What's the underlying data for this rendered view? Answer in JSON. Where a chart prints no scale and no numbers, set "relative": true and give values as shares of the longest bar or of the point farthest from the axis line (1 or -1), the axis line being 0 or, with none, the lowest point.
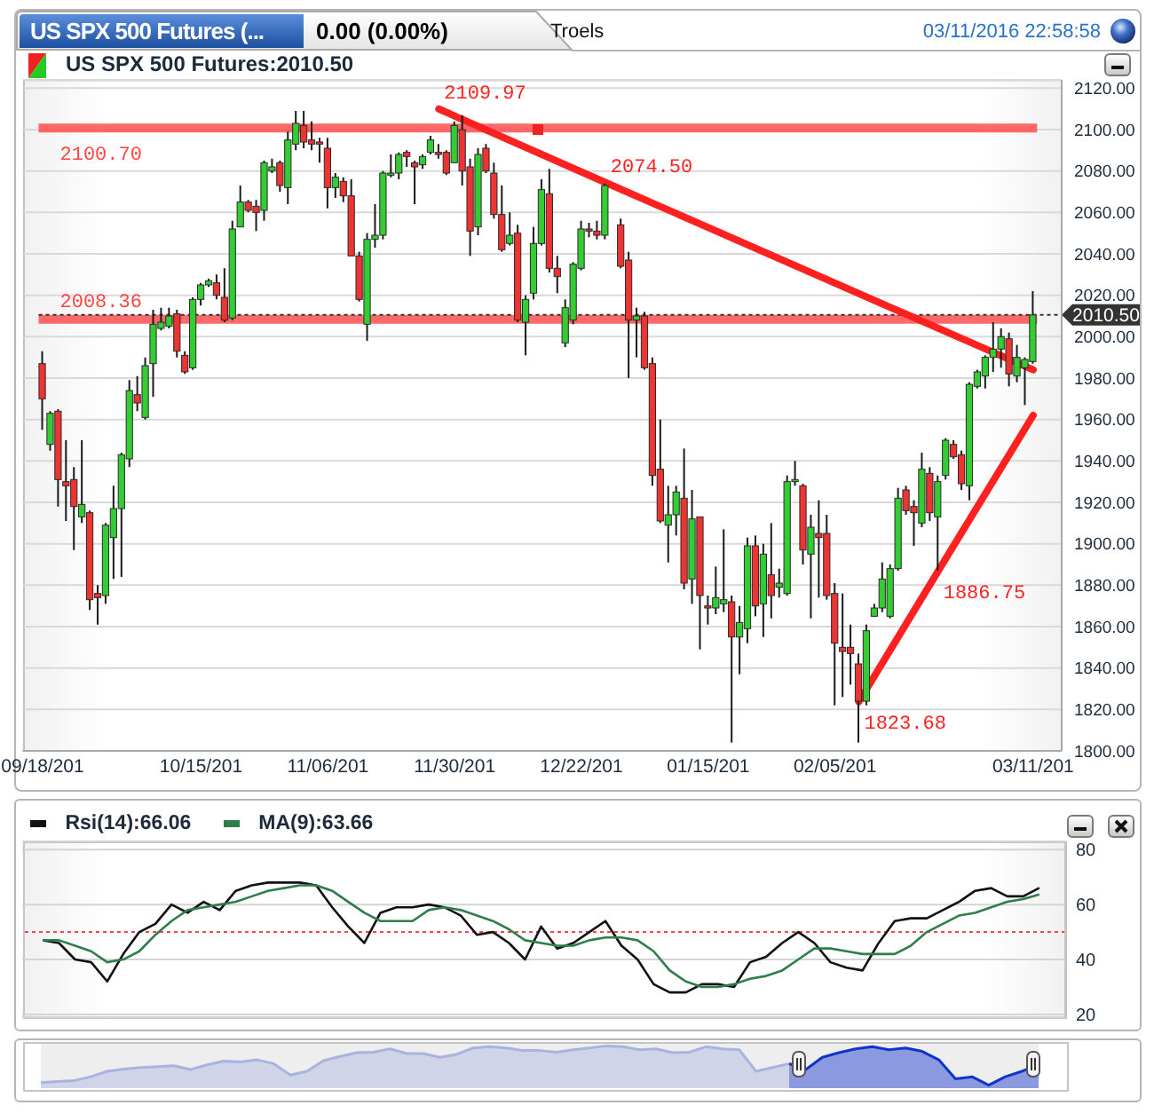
{
  "chart_data": [
    {
      "type": "candlestick",
      "title": "US SPX 500 Futures:2010.50",
      "annotations": [
        "US SPX 500 Futures (...",
        "0.00 (0.00%)",
        "Troels",
        "03/11/2016 22:58:58"
      ],
      "categories": [
        "09/18/201",
        null,
        null,
        null,
        null,
        null,
        null,
        null,
        null,
        null,
        null,
        null,
        null,
        null,
        null,
        null,
        null,
        null,
        null,
        null,
        "10/15/201",
        null,
        null,
        null,
        null,
        null,
        null,
        null,
        null,
        null,
        null,
        null,
        null,
        null,
        null,
        null,
        "11/06/201",
        null,
        null,
        null,
        null,
        null,
        null,
        null,
        null,
        null,
        null,
        null,
        null,
        null,
        null,
        null,
        "11/30/201",
        null,
        null,
        null,
        null,
        null,
        null,
        null,
        null,
        null,
        null,
        null,
        null,
        null,
        null,
        null,
        "12/22/201",
        null,
        null,
        null,
        null,
        null,
        null,
        null,
        null,
        null,
        null,
        null,
        null,
        null,
        null,
        null,
        "01/15/201",
        null,
        null,
        null,
        null,
        null,
        null,
        null,
        null,
        null,
        null,
        null,
        null,
        null,
        null,
        null,
        "02/05/201",
        null,
        null,
        null,
        null,
        null,
        null,
        null,
        null,
        null,
        null,
        null,
        null,
        null,
        null,
        null,
        null,
        null,
        null,
        null,
        null,
        null,
        null,
        null,
        null,
        "03/11/201"
      ],
      "ohlc": [
        [
          1987,
          1993,
          1955,
          1970
        ],
        [
          1948,
          1964,
          1945,
          1963
        ],
        [
          1964,
          1965,
          1918,
          1931
        ],
        [
          1930,
          1950,
          1911,
          1928
        ],
        [
          1931,
          1937,
          1897,
          1918
        ],
        [
          1913,
          1950,
          1910,
          1919
        ],
        [
          1915,
          1916,
          1868,
          1873
        ],
        [
          1876,
          1880,
          1861,
          1874
        ],
        [
          1875,
          1910,
          1871,
          1909
        ],
        [
          1903,
          1928,
          1883,
          1917
        ],
        [
          1917,
          1944,
          1884,
          1943
        ],
        [
          1941,
          1979,
          1937,
          1974
        ],
        [
          1972,
          1981,
          1964,
          1968
        ],
        [
          1961,
          1990,
          1960,
          1986
        ],
        [
          1987,
          2013,
          1971,
          2006
        ],
        [
          2004,
          2014,
          2003,
          2007
        ],
        [
          2005,
          2014,
          2004,
          2010
        ],
        [
          2011,
          2013,
          1990,
          1993
        ],
        [
          1991,
          1993,
          1982,
          1983
        ],
        [
          1985,
          2019,
          1984,
          2018
        ],
        [
          2018,
          2026,
          2015,
          2025
        ],
        [
          2025,
          2028,
          2024,
          2027
        ],
        [
          2026,
          2030,
          2018,
          2020
        ],
        [
          2019,
          2033,
          2007,
          2008
        ],
        [
          2009,
          2056,
          2008,
          2052
        ],
        [
          2053,
          2073,
          2053,
          2065
        ],
        [
          2065,
          2066,
          2060,
          2061
        ],
        [
          2063,
          2066,
          2051,
          2060
        ],
        [
          2061,
          2085,
          2056,
          2084
        ],
        [
          2080,
          2086,
          2079,
          2082
        ],
        [
          2084,
          2085,
          2070,
          2073
        ],
        [
          2072,
          2099,
          2064,
          2095
        ],
        [
          2093,
          2109,
          2090,
          2103
        ],
        [
          2102,
          2109,
          2091,
          2094
        ],
        [
          2095,
          2104,
          2090,
          2093
        ],
        [
          2094,
          2096,
          2084,
          2093
        ],
        [
          2091,
          2096,
          2062,
          2072
        ],
        [
          2072,
          2079,
          2067,
          2077
        ],
        [
          2075,
          2077,
          2065,
          2068
        ],
        [
          2068,
          2076,
          2039,
          2039
        ],
        [
          2039,
          2041,
          2017,
          2018
        ],
        [
          2006,
          2050,
          1998,
          2047
        ],
        [
          2047,
          2064,
          2043,
          2049
        ],
        [
          2049,
          2080,
          2047,
          2079
        ],
        [
          2078,
          2088,
          2077,
          2079
        ],
        [
          2079,
          2089,
          2076,
          2088
        ],
        [
          2089,
          2090,
          2082,
          2087
        ],
        [
          2084,
          2085,
          2064,
          2082
        ],
        [
          2083,
          2088,
          2081,
          2087
        ],
        [
          2089,
          2097,
          2088,
          2095
        ],
        [
          2089,
          2093,
          2086,
          2088
        ],
        [
          2089,
          2090,
          2078,
          2079
        ],
        [
          2084,
          2104,
          2084,
          2102
        ],
        [
          2100,
          2107,
          2073,
          2080
        ],
        [
          2082,
          2086,
          2039,
          2051
        ],
        [
          2053,
          2091,
          2049,
          2088
        ],
        [
          2091,
          2093,
          2079,
          2080
        ],
        [
          2079,
          2084,
          2057,
          2059
        ],
        [
          2059,
          2073,
          2041,
          2042
        ],
        [
          2045,
          2060,
          2044,
          2049
        ],
        [
          2050,
          2054,
          2007,
          2008
        ],
        [
          2007,
          2020,
          1991,
          2018
        ],
        [
          2021,
          2053,
          2018,
          2045
        ],
        [
          2045,
          2076,
          2044,
          2071
        ],
        [
          2069,
          2081,
          2031,
          2033
        ],
        [
          2033,
          2039,
          2021,
          2029
        ],
        [
          1997,
          2018,
          1995,
          2014
        ],
        [
          2008,
          2036,
          2006,
          2035
        ],
        [
          2033,
          2056,
          2032,
          2052
        ],
        [
          2052,
          2055,
          2048,
          2051
        ],
        [
          2051,
          2056,
          2047,
          2049
        ],
        [
          2049,
          2074,
          2047,
          2073
        ],
        null,
        [
          2054,
          2057,
          2033,
          2034
        ],
        [
          2037,
          2041,
          1980,
          2008
        ],
        [
          2008,
          2014,
          1990,
          2010
        ],
        [
          2010,
          2012,
          1984,
          1985
        ],
        [
          1987,
          1990,
          1928,
          1933
        ],
        [
          1936,
          1960,
          1910,
          1911
        ],
        [
          1909,
          1928,
          1891,
          1914
        ],
        [
          1914,
          1928,
          1904,
          1925
        ],
        [
          1922,
          1946,
          1878,
          1881
        ],
        [
          1883,
          1926,
          1871,
          1912
        ],
        [
          1913,
          1913,
          1849,
          1875
        ],
        [
          1870,
          1875,
          1861,
          1869
        ],
        [
          1869,
          1889,
          1866,
          1874
        ],
        [
          1871,
          1907,
          1867,
          1873
        ],
        [
          1872,
          1875,
          1804,
          1855
        ],
        [
          1855,
          1870,
          1837,
          1862
        ],
        [
          1859,
          1903,
          1852,
          1899
        ],
        [
          1899,
          1904,
          1865,
          1870
        ],
        [
          1871,
          1900,
          1855,
          1895
        ],
        [
          1885,
          1910,
          1864,
          1875
        ],
        [
          1879,
          1888,
          1874,
          1881
        ],
        [
          1876,
          1933,
          1875,
          1930
        ],
        [
          1930,
          1940,
          1928,
          1931
        ],
        [
          1928,
          1929,
          1890,
          1897
        ],
        [
          1895,
          1914,
          1864,
          1908
        ],
        [
          1905,
          1921,
          1874,
          1903
        ],
        [
          1905,
          1914,
          1873,
          1875
        ],
        [
          1876,
          1881,
          1822,
          1852
        ],
        [
          1850,
          1876,
          1826,
          1848
        ],
        [
          1850,
          1861,
          1832,
          1847
        ],
        [
          1842,
          1847,
          1804,
          1824
        ],
        [
          1824,
          1861,
          1822,
          1858
        ],
        [
          1865,
          1871,
          1865,
          1869
        ],
        [
          1869,
          1891,
          1867,
          1883
        ],
        [
          1865,
          1890,
          1864,
          1888
        ],
        [
          1888,
          1927,
          1887,
          1922
        ],
        [
          1926,
          1928,
          1914,
          1916
        ],
        [
          1918,
          1921,
          1899,
          1915
        ],
        [
          1910,
          1944,
          1908,
          1936
        ],
        [
          1934,
          1937,
          1911,
          1915
        ],
        [
          1913,
          1933,
          1887,
          1930
        ],
        [
          1933,
          1951,
          1931,
          1950
        ],
        [
          1948,
          1950,
          1941,
          1942
        ],
        [
          1943,
          1945,
          1926,
          1929
        ],
        [
          1928,
          1978,
          1921,
          1977
        ],
        [
          1976,
          1984,
          1975,
          1983
        ],
        [
          1981,
          1991,
          1975,
          1990
        ],
        [
          1990,
          2007,
          1983,
          1994
        ],
        [
          1994,
          2004,
          1985,
          2000
        ],
        [
          1999,
          2002,
          1976,
          1982
        ],
        [
          1981,
          1996,
          1978,
          1990
        ],
        [
          1985,
          1990,
          1967,
          1989
        ],
        [
          1988,
          2022,
          1987,
          2010.5
        ]
      ],
      "colors": [
        "#ee3333",
        "#33cc33",
        "#ee3333",
        "#ee3333",
        "#ee3333",
        "#33cc33",
        "#ee3333",
        "#ee3333",
        "#33cc33",
        "#33cc33",
        "#33cc33",
        "#33cc33",
        "#ee3333",
        "#33cc33",
        "#33cc33",
        "#33cc33",
        "#33cc33",
        "#ee3333",
        "#ee3333",
        "#33cc33",
        "#33cc33",
        "#33cc33",
        "#ee3333",
        "#ee3333",
        "#33cc33",
        "#33cc33",
        "#ee3333",
        "#ee3333",
        "#33cc33",
        "#33cc33",
        "#ee3333",
        "#33cc33",
        "#33cc33",
        "#ee3333",
        "#ee3333",
        "#ee3333",
        "#ee3333",
        "#33cc33",
        "#ee3333",
        "#ee3333",
        "#ee3333",
        "#33cc33",
        "#33cc33",
        "#33cc33",
        "#33cc33",
        "#33cc33",
        "#ee3333",
        "#ee3333",
        "#33cc33",
        "#33cc33",
        "#ee3333",
        "#ee3333",
        "#33cc33",
        "#ee3333",
        "#ee3333",
        "#33cc33",
        "#ee3333",
        "#ee3333",
        "#ee3333",
        "#33cc33",
        "#ee3333",
        "#33cc33",
        "#33cc33",
        "#33cc33",
        "#ee3333",
        "#ee3333",
        "#33cc33",
        "#33cc33",
        "#33cc33",
        "#ee3333",
        "#ee3333",
        "#33cc33",
        null,
        "#ee3333",
        "#ee3333",
        "#33cc33",
        "#ee3333",
        "#ee3333",
        "#ee3333",
        "#33cc33",
        "#33cc33",
        "#ee3333",
        "#33cc33",
        "#ee3333",
        "#ee3333",
        "#33cc33",
        "#33cc33",
        "#ee3333",
        "#33cc33",
        "#33cc33",
        "#ee3333",
        "#33cc33",
        "#ee3333",
        "#33cc33",
        "#33cc33",
        "#33cc33",
        "#ee3333",
        "#33cc33",
        "#ee3333",
        "#ee3333",
        "#ee3333",
        "#ee3333",
        "#ee3333",
        "#ee3333",
        "#33cc33",
        "#33cc33",
        "#33cc33",
        "#33cc33",
        "#33cc33",
        "#ee3333",
        "#ee3333",
        "#33cc33",
        "#ee3333",
        "#33cc33",
        "#33cc33",
        "#ee3333",
        "#ee3333",
        "#33cc33",
        "#33cc33",
        "#33cc33",
        "#33cc33",
        "#33cc33",
        "#ee3333",
        "#33cc33",
        "#33cc33",
        "#33cc33"
      ],
      "series": [
        {
          "type": "line",
          "color": "#ff2020",
          "values": [
            null,
            null,
            null,
            null,
            null,
            null,
            null,
            null,
            null,
            null,
            null,
            null,
            null,
            null,
            null,
            null,
            null,
            null,
            null,
            null,
            null,
            null,
            null,
            null,
            null,
            null,
            null,
            null,
            null,
            null,
            null,
            null,
            null,
            null,
            null,
            null,
            null,
            null,
            null,
            null,
            null,
            null,
            null,
            null,
            null,
            null,
            null,
            null,
            null,
            null,
            2109.97,
            null,
            null,
            null,
            null,
            null,
            null,
            null,
            null,
            null,
            null,
            null,
            null,
            null,
            null,
            null,
            null,
            null,
            null,
            null,
            null,
            2074.5,
            null,
            null,
            null,
            null,
            null,
            null,
            null,
            null,
            null,
            null,
            null,
            null,
            null,
            null,
            null,
            null,
            null,
            null,
            null,
            null,
            null,
            null,
            null,
            null,
            null,
            null,
            null,
            null,
            null,
            null,
            null,
            null,
            null,
            null,
            null,
            null,
            null,
            null,
            null,
            null,
            null,
            null,
            null,
            null,
            null,
            null,
            null,
            null,
            null,
            null,
            null,
            null,
            null,
            1984
          ],
          "value_labels": [
            null,
            null,
            null,
            null,
            null,
            null,
            null,
            null,
            null,
            null,
            null,
            null,
            null,
            null,
            null,
            null,
            null,
            null,
            null,
            null,
            null,
            null,
            null,
            null,
            null,
            null,
            null,
            null,
            null,
            null,
            null,
            null,
            null,
            null,
            null,
            null,
            null,
            null,
            null,
            null,
            null,
            null,
            null,
            null,
            null,
            null,
            null,
            null,
            null,
            null,
            "2109.97",
            null,
            null,
            null,
            null,
            null,
            null,
            null,
            null,
            null,
            null,
            null,
            null,
            null,
            null,
            null,
            null,
            null,
            null,
            null,
            null,
            "2074.50",
            null,
            null,
            null,
            null,
            null,
            null,
            null,
            null,
            null,
            null,
            null,
            null,
            null,
            null,
            null,
            null,
            null,
            null,
            null,
            null,
            null,
            null,
            null,
            null,
            null,
            null,
            null,
            null,
            null,
            null,
            null,
            null,
            null,
            null,
            null,
            null,
            null,
            null,
            null,
            null,
            null,
            null,
            null,
            null,
            null,
            null,
            null,
            null,
            null,
            null,
            null,
            null,
            null,
            null
          ]
        },
        {
          "type": "line",
          "color": "#ff2020",
          "values": [
            null,
            null,
            null,
            null,
            null,
            null,
            null,
            null,
            null,
            null,
            null,
            null,
            null,
            null,
            null,
            null,
            null,
            null,
            null,
            null,
            null,
            null,
            null,
            null,
            null,
            null,
            null,
            null,
            null,
            null,
            null,
            null,
            null,
            null,
            null,
            null,
            null,
            null,
            null,
            null,
            null,
            null,
            null,
            null,
            null,
            null,
            null,
            null,
            null,
            null,
            null,
            null,
            null,
            null,
            null,
            null,
            null,
            null,
            null,
            null,
            null,
            null,
            null,
            null,
            null,
            null,
            null,
            null,
            null,
            null,
            null,
            null,
            null,
            null,
            null,
            null,
            null,
            null,
            null,
            null,
            null,
            null,
            null,
            null,
            null,
            null,
            null,
            null,
            null,
            null,
            null,
            null,
            null,
            null,
            null,
            null,
            null,
            null,
            null,
            null,
            null,
            null,
            null,
            1823.68,
            null,
            null,
            null,
            null,
            null,
            null,
            null,
            null,
            null,
            1886.75,
            null,
            null,
            null,
            null,
            null,
            null,
            null,
            null,
            null,
            null,
            null,
            1962
          ],
          "value_labels": [
            null,
            null,
            null,
            null,
            null,
            null,
            null,
            null,
            null,
            null,
            null,
            null,
            null,
            null,
            null,
            null,
            null,
            null,
            null,
            null,
            null,
            null,
            null,
            null,
            null,
            null,
            null,
            null,
            null,
            null,
            null,
            null,
            null,
            null,
            null,
            null,
            null,
            null,
            null,
            null,
            null,
            null,
            null,
            null,
            null,
            null,
            null,
            null,
            null,
            null,
            null,
            null,
            null,
            null,
            null,
            null,
            null,
            null,
            null,
            null,
            null,
            null,
            null,
            null,
            null,
            null,
            null,
            null,
            null,
            null,
            null,
            null,
            null,
            null,
            null,
            null,
            null,
            null,
            null,
            null,
            null,
            null,
            null,
            null,
            null,
            null,
            null,
            null,
            null,
            null,
            null,
            null,
            null,
            null,
            null,
            null,
            null,
            null,
            null,
            null,
            null,
            null,
            null,
            "1823.68",
            null,
            null,
            null,
            null,
            null,
            null,
            null,
            null,
            null,
            "1886.75",
            null,
            null,
            null,
            null,
            null,
            null,
            null,
            null,
            null,
            null,
            null,
            null
          ]
        }
      ],
      "ylim": [
        1800,
        2124
      ],
      "yticks": [
        {
          "value": 1800,
          "label": "1800.00"
        },
        {
          "value": 1820,
          "label": "1820.00"
        },
        {
          "value": 1840,
          "label": "1840.00"
        },
        {
          "value": 1860,
          "label": "1860.00"
        },
        {
          "value": 1880,
          "label": "1880.00"
        },
        {
          "value": 1900,
          "label": "1900.00"
        },
        {
          "value": 1920,
          "label": "1920.00"
        },
        {
          "value": 1940,
          "label": "1940.00"
        },
        {
          "value": 1960,
          "label": "1960.00"
        },
        {
          "value": 1980,
          "label": "1980.00"
        },
        {
          "value": 2000,
          "label": "2000.00"
        },
        {
          "value": 2020,
          "label": "2020.00"
        },
        {
          "value": 2040,
          "label": "2040.00"
        },
        {
          "value": 2060,
          "label": "2060.00"
        },
        {
          "value": 2080,
          "label": "2080.00"
        },
        {
          "value": 2100,
          "label": "2100.00"
        },
        {
          "value": 2120,
          "label": "2120.00"
        }
      ],
      "grid": "y",
      "ref_lines": [
        {
          "axis": "y",
          "value": 2100.7,
          "label": "2100.70",
          "color": "#ff4444"
        },
        {
          "axis": "y",
          "value": 2008.36,
          "label": "2008.36",
          "color": "#ff4444"
        },
        {
          "axis": "y",
          "value": 2010.5,
          "label": "2010.50",
          "color": "#333333",
          "line_style": "dotted"
        }
      ]
    },
    {
      "type": "line",
      "categories": [
        null,
        null,
        null,
        null,
        null,
        null,
        null,
        null,
        null,
        null,
        null,
        null,
        null,
        null,
        null,
        null,
        null,
        null,
        null,
        null,
        null,
        null,
        null,
        null,
        null,
        null,
        null,
        null,
        null,
        null,
        null,
        null,
        null,
        null,
        null,
        null,
        null,
        null,
        null,
        null,
        null,
        null,
        null,
        null,
        null,
        null,
        null,
        null,
        null,
        null,
        null,
        null,
        null,
        null,
        null,
        null,
        null,
        null,
        null,
        null,
        null,
        null,
        null
      ],
      "series": [
        {
          "name": "Rsi(14):66.06",
          "color": "#111111",
          "values": [
            47,
            46,
            40,
            39,
            32,
            42,
            50,
            53,
            60,
            57,
            61,
            58,
            65,
            67,
            68,
            68,
            68,
            67,
            59,
            52,
            46,
            57,
            59,
            59,
            60,
            59,
            56,
            49,
            50,
            46,
            40,
            52,
            44,
            46,
            50,
            54,
            45,
            40,
            31,
            28,
            28,
            31,
            31,
            30,
            39,
            41,
            46,
            50,
            46,
            39,
            37,
            36,
            46,
            54,
            55,
            55,
            58,
            61,
            65,
            66,
            63,
            63,
            66.06
          ]
        },
        {
          "name": "MA(9):63.66",
          "color": "#2e7d4a",
          "values": [
            47,
            47,
            45,
            43,
            39,
            40,
            43,
            49,
            54,
            58,
            59,
            60,
            61,
            63,
            65,
            66,
            67,
            67,
            65,
            61,
            57,
            54,
            54,
            54,
            58,
            59,
            58,
            56,
            54,
            51,
            47,
            46,
            45,
            45,
            47,
            48,
            48,
            47,
            43,
            36,
            32,
            30,
            30,
            31,
            33,
            34,
            36,
            40,
            44,
            44,
            43,
            42,
            42,
            42,
            45,
            50,
            53,
            56,
            57,
            59,
            61,
            62,
            63.66
          ]
        }
      ],
      "ylim": [
        19,
        83
      ],
      "yticks": [
        20,
        40,
        60,
        80
      ],
      "grid": "y",
      "legend": "top left",
      "tick_labels": "y",
      "ref_lines": [
        {
          "axis": "y",
          "value": 50,
          "color": "#ff4444",
          "line_style": "dotted"
        }
      ]
    },
    {
      "type": "area",
      "relative": true,
      "tick_labels": false,
      "categories": [
        null,
        null,
        null,
        null,
        null,
        null,
        null,
        null,
        null,
        null,
        null,
        null,
        null,
        null,
        null,
        null,
        null,
        null,
        null,
        null,
        null,
        null,
        null,
        null,
        null,
        null,
        null,
        null,
        null,
        null,
        null,
        null,
        null,
        null,
        null,
        null,
        null,
        null,
        null,
        null,
        null,
        null,
        null,
        null,
        null,
        null,
        null,
        null,
        null,
        null,
        null,
        null,
        null,
        null,
        null,
        null,
        null,
        null,
        null,
        null,
        null
      ],
      "series": [
        {
          "color": "#a9b3df",
          "values": [
            0.13,
            0.16,
            0.18,
            0.27,
            0.4,
            0.45,
            0.49,
            0.51,
            0.53,
            0.44,
            0.55,
            0.64,
            0.62,
            0.67,
            0.58,
            0.31,
            0.4,
            0.65,
            0.75,
            0.84,
            0.85,
            0.93,
            0.82,
            0.82,
            0.73,
            0.8,
            0.95,
            0.98,
            0.95,
            0.89,
            0.89,
            0.85,
            0.91,
            0.95,
            1,
            0.98,
            0.91,
            0.93,
            0.84,
            0.85,
            0.98,
            0.93,
            0.91,
            0.4,
            0.49,
            0.58,
            null,
            null,
            null,
            null,
            null,
            null,
            null,
            null,
            null,
            null,
            null,
            null,
            null,
            null,
            null
          ]
        },
        {
          "color": "#1133cc",
          "values": [
            null,
            null,
            null,
            null,
            null,
            null,
            null,
            null,
            null,
            null,
            null,
            null,
            null,
            null,
            null,
            null,
            null,
            null,
            null,
            null,
            null,
            null,
            null,
            null,
            null,
            null,
            null,
            null,
            null,
            null,
            null,
            null,
            null,
            null,
            null,
            null,
            null,
            null,
            null,
            null,
            null,
            null,
            null,
            null,
            null,
            0.58,
            0.44,
            0.73,
            0.84,
            0.93,
            0.98,
            0.91,
            0.95,
            0.87,
            0.67,
            0.22,
            0.27,
            0.07,
            0.27,
            0.4,
            0.55
          ]
        }
      ]
    }
  ]
}
